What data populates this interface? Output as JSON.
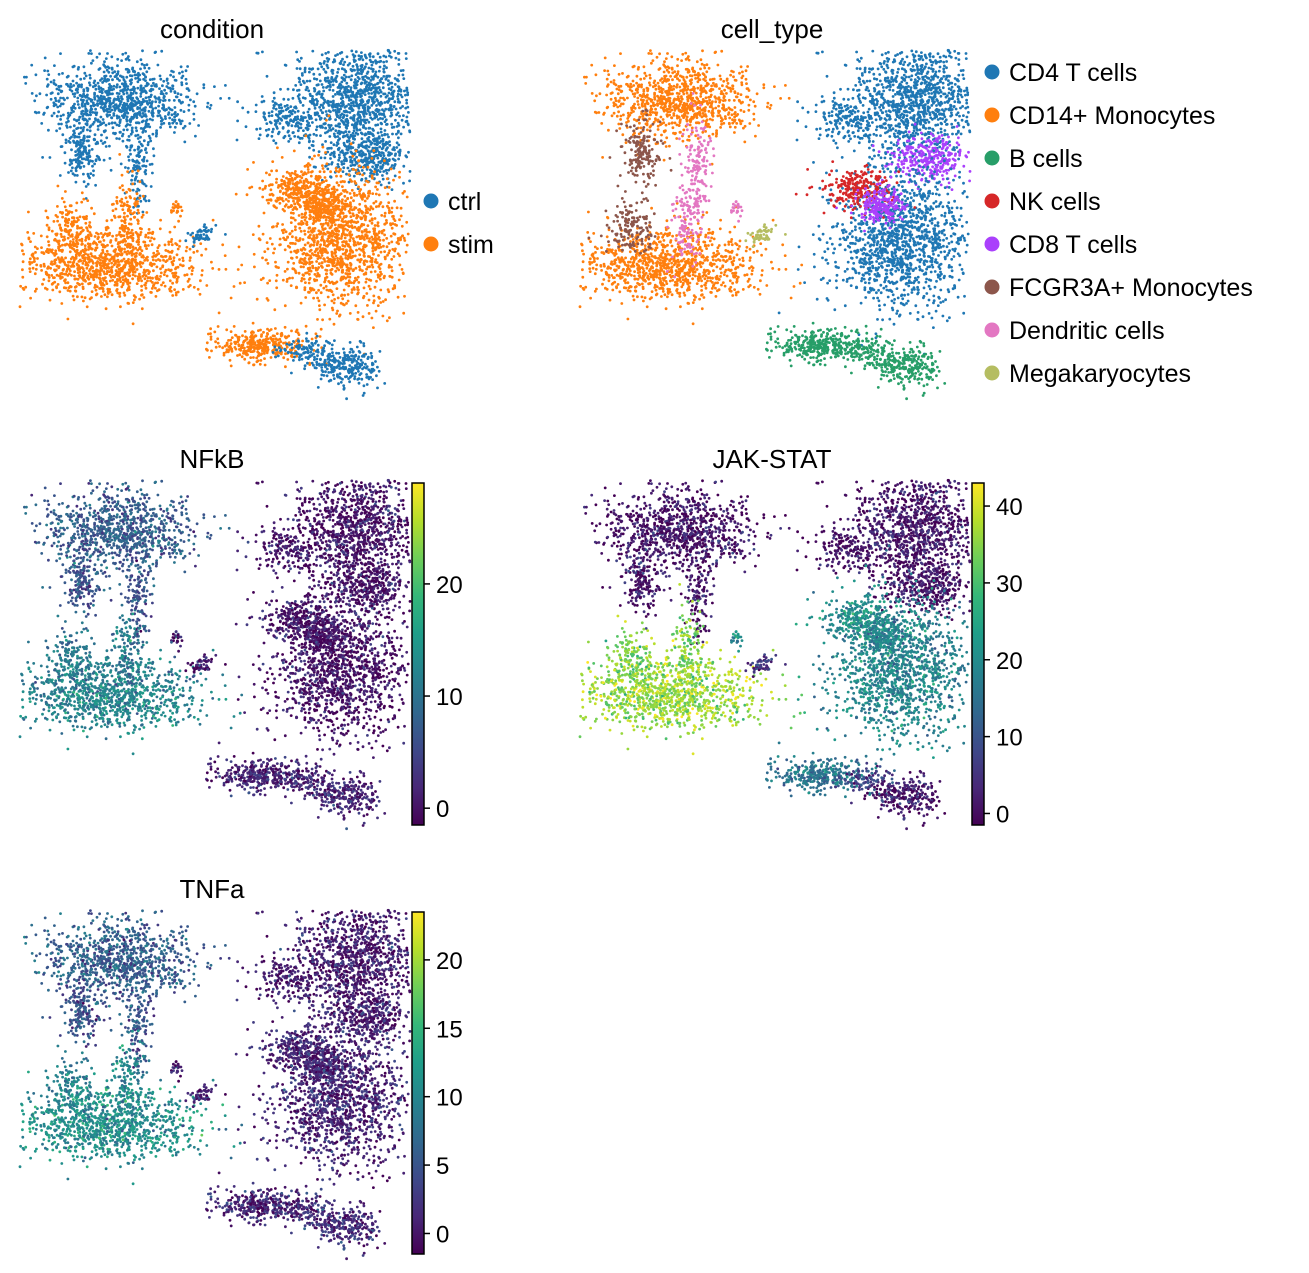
{
  "chart_data": [
    {
      "type": "scatter",
      "title": "condition",
      "color_mode": "categorical",
      "legend": {
        "placement": "right",
        "entries": [
          {
            "label": "ctrl",
            "color": "#1f77b4"
          },
          {
            "label": "stim",
            "color": "#ff7f0e"
          }
        ]
      }
    },
    {
      "type": "scatter",
      "title": "cell_type",
      "color_mode": "categorical",
      "legend": {
        "placement": "right",
        "entries": [
          {
            "label": "CD4 T cells",
            "color": "#1f77b4"
          },
          {
            "label": "CD14+ Monocytes",
            "color": "#ff7f0e"
          },
          {
            "label": "B cells",
            "color": "#279e68"
          },
          {
            "label": "NK cells",
            "color": "#d62728"
          },
          {
            "label": "CD8 T cells",
            "color": "#aa40fc"
          },
          {
            "label": "FCGR3A+ Monocytes",
            "color": "#8c564b"
          },
          {
            "label": "Dendritic cells",
            "color": "#e377c2"
          },
          {
            "label": "Megakaryocytes",
            "color": "#b5bd61"
          }
        ]
      }
    },
    {
      "type": "scatter",
      "title": "NFkB",
      "color_mode": "continuous",
      "colormap": "viridis",
      "colorbar": {
        "range": [
          -1.5,
          29
        ],
        "ticks": [
          "0",
          "10",
          "20"
        ],
        "tick_values": [
          0,
          10,
          20
        ]
      }
    },
    {
      "type": "scatter",
      "title": "JAK-STAT",
      "color_mode": "continuous",
      "colormap": "viridis",
      "colorbar": {
        "range": [
          -1.5,
          43
        ],
        "ticks": [
          "0",
          "10",
          "20",
          "30",
          "40"
        ],
        "tick_values": [
          0,
          10,
          20,
          30,
          40
        ]
      }
    },
    {
      "type": "scatter",
      "title": "TNFa",
      "color_mode": "continuous",
      "colormap": "viridis",
      "colorbar": {
        "range": [
          -1.5,
          23.5
        ],
        "ticks": [
          "0",
          "5",
          "10",
          "15",
          "20"
        ],
        "tick_values": [
          0,
          5,
          10,
          15,
          20
        ]
      }
    }
  ],
  "colors": {
    "ctrl": "#1f77b4",
    "stim": "#ff7f0e",
    "viridis": [
      "#440154",
      "#482878",
      "#3e4989",
      "#31688e",
      "#26828e",
      "#1f9e89",
      "#35b779",
      "#6ece58",
      "#b5de2b",
      "#fde725"
    ]
  }
}
